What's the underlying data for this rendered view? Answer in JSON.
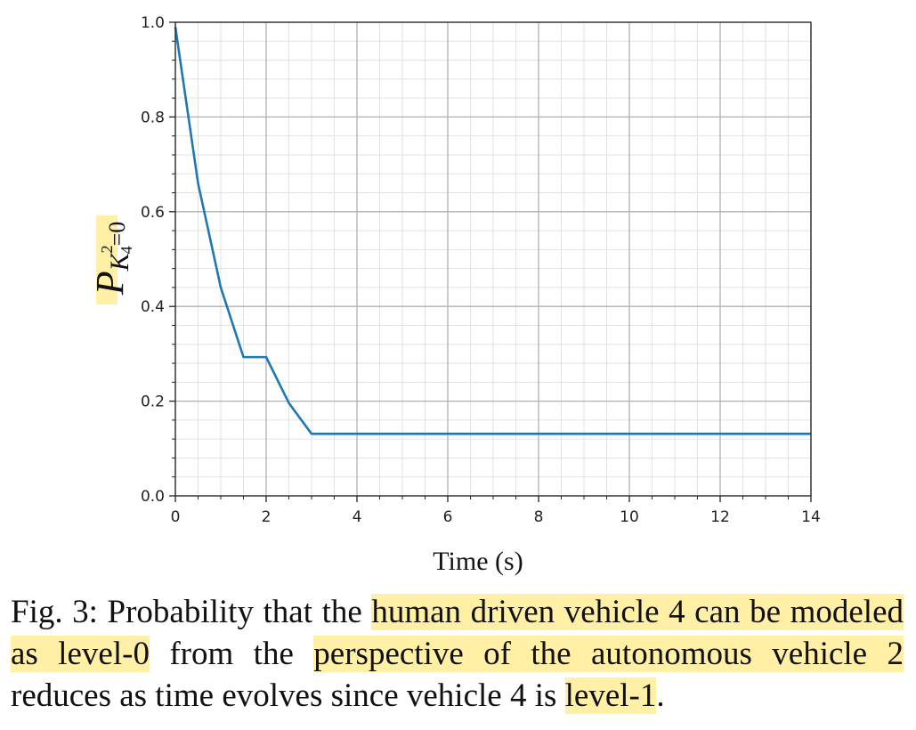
{
  "chart_data": {
    "type": "line",
    "title": "",
    "xlabel": "Time (s)",
    "ylabel": {
      "main": "P",
      "sub_main": "K",
      "sub_sup": "2",
      "sub_sub": "4",
      "sub_rest": "=0"
    },
    "xlim": [
      0,
      14
    ],
    "ylim": [
      0,
      1.0
    ],
    "xticks": [
      "0",
      "2",
      "4",
      "6",
      "8",
      "10",
      "12",
      "14"
    ],
    "yticks": [
      "0.0",
      "0.2",
      "0.4",
      "0.6",
      "0.8",
      "1.0"
    ],
    "grid": true,
    "minor_grid": true,
    "series": [
      {
        "color": "#1f77b4",
        "x": [
          0,
          0.5,
          1.0,
          1.5,
          2.0,
          2.5,
          3.0,
          14
        ],
        "y": [
          0.99,
          0.66,
          0.44,
          0.293,
          0.293,
          0.196,
          0.131,
          0.131
        ]
      }
    ]
  },
  "caption": {
    "prefix": "Fig. 3: Probability that the ",
    "hl1": "human driven vehicle 4 can be modeled as level-0",
    "mid1": " from the ",
    "hl2": "perspective of the autonomous vehicle 2",
    "mid2": " reduces as time evolves since vehicle 4 is ",
    "hl3": "level-1",
    "end": "."
  }
}
